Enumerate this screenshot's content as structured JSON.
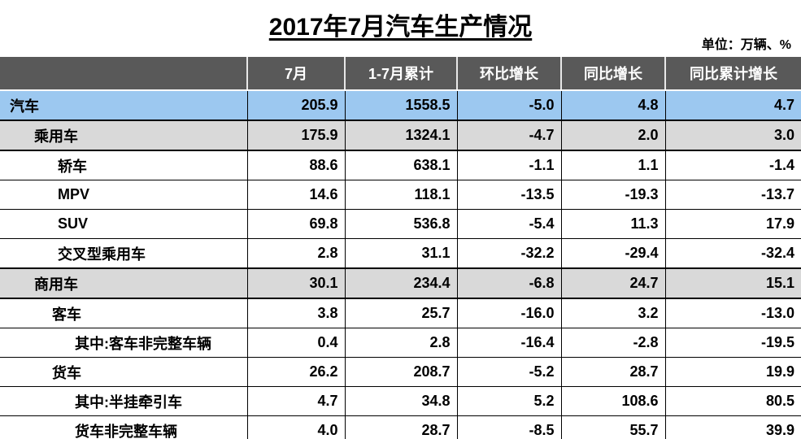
{
  "title": "2017年7月汽车生产情况",
  "unit_label": "单位：万辆、%",
  "colors": {
    "header_bg": "#595959",
    "header_text": "#ffffff",
    "row_highlight_blue": "#9CC8F0",
    "row_highlight_gray": "#D9D9D9",
    "border": "#000000"
  },
  "chart_data": {
    "type": "table",
    "title": "2017年7月汽车生产情况",
    "unit": "单位：万辆、%",
    "columns": [
      "",
      "7月",
      "1-7月累计",
      "环比增长",
      "同比增长",
      "同比累计增长"
    ],
    "rows": [
      {
        "label": "汽车",
        "indent": 0,
        "variant": "blue",
        "values": [
          "205.9",
          "1558.5",
          "-5.0",
          "4.8",
          "4.7"
        ]
      },
      {
        "label": "乘用车",
        "indent": 1,
        "variant": "gray",
        "values": [
          "175.9",
          "1324.1",
          "-4.7",
          "2.0",
          "3.0"
        ]
      },
      {
        "label": "轿车",
        "indent": 2,
        "variant": "white",
        "values": [
          "88.6",
          "638.1",
          "-1.1",
          "1.1",
          "-1.4"
        ]
      },
      {
        "label": "MPV",
        "indent": 2,
        "variant": "white",
        "values": [
          "14.6",
          "118.1",
          "-13.5",
          "-19.3",
          "-13.7"
        ]
      },
      {
        "label": "SUV",
        "indent": 2,
        "variant": "white",
        "values": [
          "69.8",
          "536.8",
          "-5.4",
          "11.3",
          "17.9"
        ]
      },
      {
        "label": "交叉型乘用车",
        "indent": 2,
        "variant": "white",
        "values": [
          "2.8",
          "31.1",
          "-32.2",
          "-29.4",
          "-32.4"
        ]
      },
      {
        "label": "商用车",
        "indent": 1,
        "variant": "gray",
        "values": [
          "30.1",
          "234.4",
          "-6.8",
          "24.7",
          "15.1"
        ]
      },
      {
        "label": "客车",
        "indent": 1.5,
        "variant": "white",
        "values": [
          "3.8",
          "25.7",
          "-16.0",
          "3.2",
          "-13.0"
        ]
      },
      {
        "label": "其中:客车非完整车辆",
        "indent": 3,
        "variant": "white",
        "values": [
          "0.4",
          "2.8",
          "-16.4",
          "-2.8",
          "-19.5"
        ]
      },
      {
        "label": "货车",
        "indent": 1.5,
        "variant": "white",
        "values": [
          "26.2",
          "208.7",
          "-5.2",
          "28.7",
          "19.9"
        ]
      },
      {
        "label": "其中:半挂牵引车",
        "indent": 3,
        "variant": "white",
        "values": [
          "4.7",
          "34.8",
          "5.2",
          "108.6",
          "80.5"
        ]
      },
      {
        "label": "货车非完整车辆",
        "indent": 3,
        "variant": "white",
        "values": [
          "4.0",
          "28.7",
          "-8.5",
          "55.7",
          "39.9"
        ]
      }
    ]
  }
}
